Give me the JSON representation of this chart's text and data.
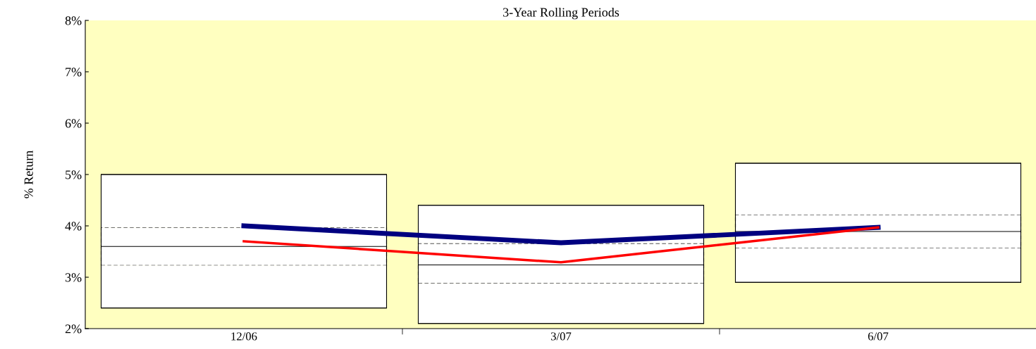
{
  "chart_data": {
    "type": "box",
    "title": "3-Year Rolling Periods",
    "ylabel": "% Return",
    "categories": [
      "12/06",
      "3/07",
      "6/07"
    ],
    "boxes": [
      {
        "low": 2.4,
        "q1": 3.23,
        "median": 3.6,
        "q3": 3.97,
        "high": 5.0
      },
      {
        "low": 2.1,
        "q1": 2.88,
        "median": 3.24,
        "q3": 3.66,
        "high": 4.4
      },
      {
        "low": 2.9,
        "q1": 3.56,
        "median": 3.89,
        "q3": 4.22,
        "high": 5.22
      }
    ],
    "series": [
      {
        "type": "line",
        "color": "#000080",
        "values": [
          4.0,
          3.67,
          3.97
        ]
      },
      {
        "type": "line",
        "color": "#ff0000",
        "values": [
          3.7,
          3.29,
          3.97
        ]
      }
    ],
    "ylim": [
      2,
      8
    ],
    "yticks": [
      {
        "value": 2,
        "label": "2%"
      },
      {
        "value": 3,
        "label": "3%"
      },
      {
        "value": 4,
        "label": "4%"
      },
      {
        "value": 5,
        "label": "5%"
      },
      {
        "value": 6,
        "label": "6%"
      },
      {
        "value": 7,
        "label": "7%"
      },
      {
        "value": 8,
        "label": "8%"
      }
    ],
    "grid": false,
    "legend": false,
    "marker": "none",
    "line_style": "solid"
  }
}
